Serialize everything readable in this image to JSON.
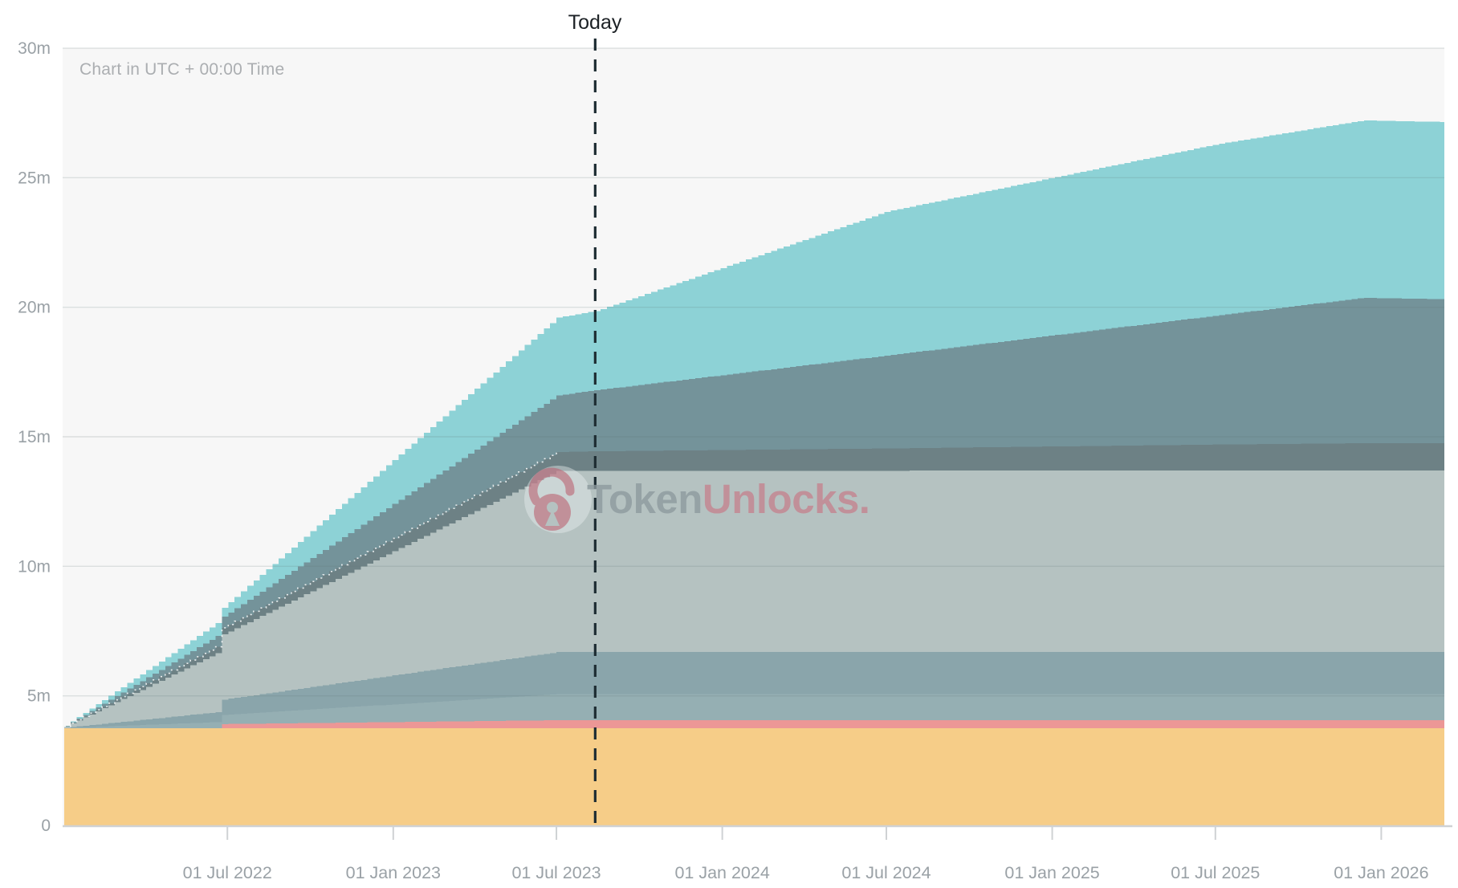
{
  "watermark": {
    "brand_primary": "Token",
    "brand_secondary": "Unlocks."
  },
  "colors": {
    "plot_background": "#f7f7f7",
    "axis_line": "#cfd2d4",
    "tick_label": "#9aa1a6",
    "today_line": "#1e2d33",
    "watermark_gray": "#8d9a9e",
    "watermark_rose": "#c5828e"
  },
  "chart_data": {
    "type": "area",
    "stacked": true,
    "unit": "millions of tokens",
    "timezone_note": "Chart in UTC + 00:00 Time",
    "today": {
      "date": "2023-08-13",
      "label": "Today"
    },
    "x_domain": [
      "2022-01-01",
      "2026-03-12"
    ],
    "ylim": [
      0,
      30
    ],
    "grid": true,
    "legend": "none",
    "y_ticks": [
      {
        "value": 0,
        "label": "0"
      },
      {
        "value": 5,
        "label": "5m"
      },
      {
        "value": 10,
        "label": "10m"
      },
      {
        "value": 15,
        "label": "15m"
      },
      {
        "value": 20,
        "label": "20m"
      },
      {
        "value": 25,
        "label": "25m"
      },
      {
        "value": 30,
        "label": "30m"
      }
    ],
    "x_ticks": [
      {
        "date": "2022-07-01",
        "label": "01 Jul 2022"
      },
      {
        "date": "2023-01-01",
        "label": "01 Jan 2023"
      },
      {
        "date": "2023-07-01",
        "label": "01 Jul 2023"
      },
      {
        "date": "2024-01-01",
        "label": "01 Jan 2024"
      },
      {
        "date": "2024-07-01",
        "label": "01 Jul 2024"
      },
      {
        "date": "2025-01-01",
        "label": "01 Jan 2025"
      },
      {
        "date": "2025-07-01",
        "label": "01 Jul 2025"
      },
      {
        "date": "2026-01-01",
        "label": "01 Jan 2026"
      }
    ],
    "step_days": 7,
    "breakpoint_dates": [
      "2022-01-01",
      "2022-06-21",
      "2022-06-22",
      "2023-07-01",
      "2023-08-13",
      "2024-07-01",
      "2025-07-01",
      "2025-12-10",
      "2026-03-12"
    ],
    "series": [
      {
        "name": "orange-allocation",
        "color": "#f6cd88",
        "values": [
          3.75,
          3.75,
          3.75,
          3.75,
          3.75,
          3.75,
          3.75,
          3.75,
          3.75
        ]
      },
      {
        "name": "pink-allocation",
        "color": "#ec9796",
        "values": [
          0,
          0,
          0.16,
          0.31,
          0.31,
          0.31,
          0.31,
          0.31,
          0.31
        ]
      },
      {
        "name": "steel-light-allocation",
        "color": "#95afb3",
        "values": [
          0.01,
          0.24,
          0.35,
          1.0,
          1.0,
          1.0,
          1.0,
          1.0,
          1.0
        ]
      },
      {
        "name": "steel-dark-allocation",
        "color": "#8aa5ab",
        "values": [
          0.01,
          0.39,
          0.58,
          1.63,
          1.63,
          1.63,
          1.63,
          1.63,
          1.63
        ]
      },
      {
        "name": "light-gray-allocation",
        "color": "#b5c2c1",
        "values": [
          0.04,
          2.32,
          2.48,
          6.99,
          7.0,
          7.0,
          7.01,
          7.01,
          7.01
        ]
      },
      {
        "name": "dark-slate-allocation",
        "color": "#6d8185",
        "values": [
          0.01,
          0.25,
          0.25,
          0.73,
          0.75,
          0.86,
          1.0,
          1.05,
          1.06
        ]
      },
      {
        "name": "slate-teal-allocation",
        "color": "#74939a",
        "values": [
          0.01,
          0.42,
          0.42,
          2.19,
          2.36,
          3.59,
          4.98,
          5.61,
          5.55
        ]
      },
      {
        "name": "cyan-allocation",
        "color": "#8dd2d6",
        "values": [
          0.02,
          0.51,
          0.32,
          3.0,
          3.06,
          5.56,
          6.61,
          6.85,
          6.84
        ]
      }
    ],
    "dotted_boundary": {
      "above_series": "dark-slate-allocation",
      "until_date": "2023-07-01"
    }
  }
}
